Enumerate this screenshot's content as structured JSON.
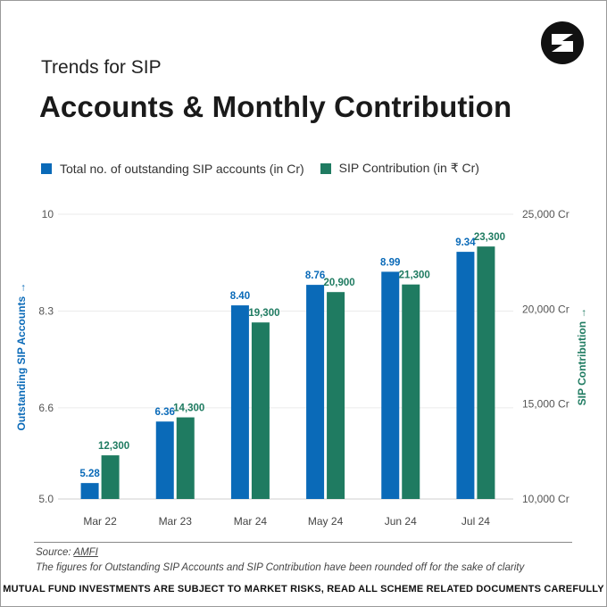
{
  "header": {
    "subtitle": "Trends for SIP",
    "title": "Accounts & Monthly Contribution"
  },
  "colors": {
    "accounts": "#0a6ab8",
    "contribution": "#1f7b61"
  },
  "icons": {
    "logo": "brand-logo-icon"
  },
  "chart_data": {
    "type": "bar",
    "categories": [
      "Mar 22",
      "Mar 23",
      "Mar 24",
      "May 24",
      "Jun 24",
      "Jul 24"
    ],
    "series": [
      {
        "name": "Total no. of outstanding SIP accounts (in Cr)",
        "axis": "left",
        "values": [
          5.28,
          6.36,
          8.4,
          8.76,
          8.99,
          9.34
        ],
        "labels": [
          "5.28",
          "6.36",
          "8.40",
          "8.76",
          "8.99",
          "9.34"
        ]
      },
      {
        "name": "SIP Contribution (in ₹ Cr)",
        "axis": "right",
        "values": [
          12300,
          14300,
          19300,
          20900,
          21300,
          23300
        ],
        "labels": [
          "12,300",
          "14,300",
          "19,300",
          "20,900",
          "21,300",
          "23,300"
        ]
      }
    ],
    "left_axis": {
      "label": "Outstanding SIP Accounts →",
      "ylim": [
        5.0,
        10
      ],
      "ticks": [
        5.0,
        6.6,
        8.3,
        10
      ],
      "tick_labels": [
        "5.0",
        "6.6",
        "8.3",
        "10"
      ]
    },
    "right_axis": {
      "label": "SIP Contribution →",
      "ylim": [
        10000,
        25000
      ],
      "ticks": [
        10000,
        15000,
        20000,
        25000
      ],
      "tick_labels": [
        "10,000 Cr",
        "15,000 Cr",
        "20,000 Cr",
        "25,000 Cr"
      ]
    },
    "grid": true,
    "legend_position": "top-left"
  },
  "footer": {
    "source_prefix": "Source: ",
    "source_link": "AMFI",
    "note": "The figures for Outstanding SIP Accounts and SIP Contribution have been rounded off for the sake of clarity",
    "disclaimer": "MUTUAL FUND INVESTMENTS ARE SUBJECT TO MARKET RISKS, READ ALL SCHEME RELATED DOCUMENTS CAREFULLY"
  }
}
